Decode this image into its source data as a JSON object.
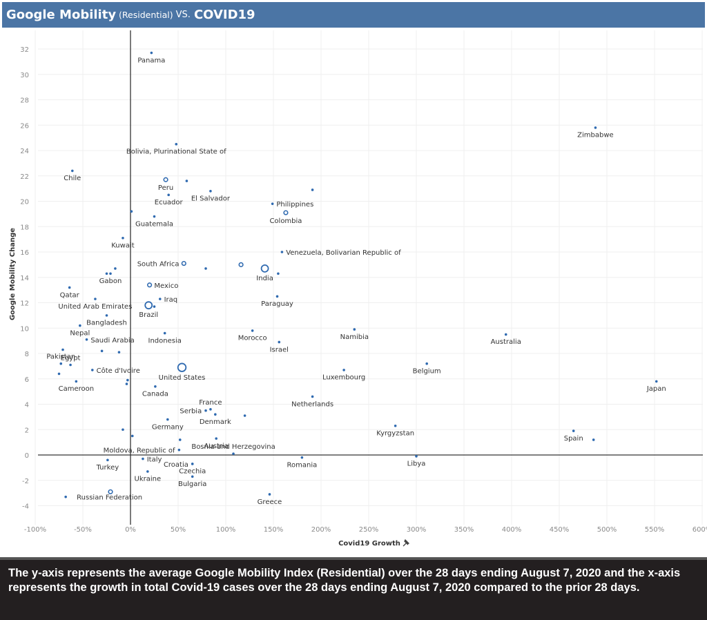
{
  "header": {
    "title_main": "Google Mobility",
    "title_sub": "(Residential)",
    "title_vs": "VS.",
    "title_covid": "COVID19",
    "background": "#4b75a5"
  },
  "footer": {
    "text": "The y-axis represents the average Google Mobility Index (Residential) over the 28 days ending August 7, 2020 and the x-axis represents the growth in total Covid-19 cases over the 28 days ending August 7, 2020 compared to the prior 28 days."
  },
  "chart_data": {
    "type": "scatter",
    "title": "Google Mobility (Residential) VS. COVID19",
    "xlabel": "Covid19 Growth",
    "xlabel_icon": "pin-icon",
    "ylabel": "Google Mobility Change",
    "xlim": [
      -110,
      605
    ],
    "ylim": [
      -5.2,
      33
    ],
    "x_unit": "%",
    "grid": true,
    "x_ticks": [
      -100,
      -50,
      0,
      50,
      100,
      150,
      200,
      250,
      300,
      350,
      400,
      450,
      500,
      550,
      600
    ],
    "x_tick_labels": [
      "-100%",
      "-50%",
      "0%",
      "50%",
      "100%",
      "150%",
      "200%",
      "250%",
      "300%",
      "350%",
      "400%",
      "450%",
      "500%",
      "550%",
      "600%"
    ],
    "y_ticks": [
      -4,
      -2,
      0,
      2,
      4,
      6,
      8,
      10,
      12,
      14,
      16,
      18,
      20,
      22,
      24,
      26,
      28,
      30,
      32
    ],
    "marker_color": "#2f6ab0",
    "points": [
      {
        "label": "Panama",
        "x": 22,
        "y": 31.7,
        "size": "s",
        "lx": 0,
        "ly": 1
      },
      {
        "label": "Zimbabwe",
        "x": 488,
        "y": 25.8,
        "size": "s",
        "lx": 0,
        "ly": 1
      },
      {
        "label": "Bolivia, Plurinational State of",
        "x": 48,
        "y": 24.5,
        "size": "s",
        "lx": 0,
        "ly": 1
      },
      {
        "label": "Chile",
        "x": -61,
        "y": 22.4,
        "size": "s",
        "lx": 0,
        "ly": 1
      },
      {
        "label": "Peru",
        "x": 37,
        "y": 21.7,
        "size": "m",
        "lx": 0,
        "ly": 1
      },
      {
        "label": "",
        "x": 59,
        "y": 21.6,
        "size": "s"
      },
      {
        "label": "",
        "x": 191,
        "y": 20.9,
        "size": "s"
      },
      {
        "label": "El Salvador",
        "x": 84,
        "y": 20.8,
        "size": "s",
        "lx": 0,
        "ly": 1
      },
      {
        "label": "Ecuador",
        "x": 40,
        "y": 20.5,
        "size": "s",
        "lx": 0,
        "ly": 1
      },
      {
        "label": "Philippines",
        "x": 149,
        "y": 19.8,
        "size": "s",
        "lx": 1,
        "ly": 0
      },
      {
        "label": "",
        "x": 1,
        "y": 19.2,
        "size": "s"
      },
      {
        "label": "Colombia",
        "x": 163,
        "y": 19.1,
        "size": "m",
        "lx": 0,
        "ly": 1
      },
      {
        "label": "Guatemala",
        "x": 25,
        "y": 18.8,
        "size": "s",
        "lx": 0,
        "ly": 1
      },
      {
        "label": "Kuwait",
        "x": -8,
        "y": 17.1,
        "size": "s",
        "lx": 0,
        "ly": 1
      },
      {
        "label": "Venezuela, Bolivarian Republic of",
        "x": 159,
        "y": 16.0,
        "size": "s",
        "lx": 1,
        "ly": 0
      },
      {
        "label": "South Africa",
        "x": 56,
        "y": 15.1,
        "size": "m",
        "lx": -1,
        "ly": 0
      },
      {
        "label": "",
        "x": 116,
        "y": 15.0,
        "size": "m"
      },
      {
        "label": "",
        "x": 79,
        "y": 14.7,
        "size": "s"
      },
      {
        "label": "",
        "x": -16,
        "y": 14.7,
        "size": "s"
      },
      {
        "label": "India",
        "x": 141,
        "y": 14.7,
        "size": "l",
        "lx": 0,
        "ly": 1
      },
      {
        "label": "",
        "x": 155,
        "y": 14.3,
        "size": "s"
      },
      {
        "label": "",
        "x": -25,
        "y": 14.3,
        "size": "s"
      },
      {
        "label": "Gabon",
        "x": -21,
        "y": 14.3,
        "size": "s",
        "lx": 0,
        "ly": 1
      },
      {
        "label": "Mexico",
        "x": 20,
        "y": 13.4,
        "size": "m",
        "lx": 1,
        "ly": 0
      },
      {
        "label": "Qatar",
        "x": -64,
        "y": 13.2,
        "size": "s",
        "lx": 0,
        "ly": 1
      },
      {
        "label": "Paraguay",
        "x": 154,
        "y": 12.5,
        "size": "s",
        "lx": 0,
        "ly": 1
      },
      {
        "label": "Iraq",
        "x": 31,
        "y": 12.3,
        "size": "s",
        "lx": 1,
        "ly": 0
      },
      {
        "label": "United Arab Emirates",
        "x": -37,
        "y": 12.3,
        "size": "s",
        "lx": 0,
        "ly": 1
      },
      {
        "label": "Brazil",
        "x": 19,
        "y": 11.8,
        "size": "l",
        "lx": 0,
        "ly": 1
      },
      {
        "label": "",
        "x": 25,
        "y": 11.7,
        "size": "s"
      },
      {
        "label": "Bangladesh",
        "x": -25,
        "y": 11.0,
        "size": "s",
        "lx": 0,
        "ly": 1
      },
      {
        "label": "Nepal",
        "x": -53,
        "y": 10.2,
        "size": "s",
        "lx": 0,
        "ly": 1
      },
      {
        "label": "Namibia",
        "x": 235,
        "y": 9.9,
        "size": "s",
        "lx": 0,
        "ly": 1
      },
      {
        "label": "Morocco",
        "x": 128,
        "y": 9.8,
        "size": "s",
        "lx": 0,
        "ly": 1
      },
      {
        "label": "Indonesia",
        "x": 36,
        "y": 9.6,
        "size": "s",
        "lx": 0,
        "ly": 1
      },
      {
        "label": "Australia",
        "x": 394,
        "y": 9.5,
        "size": "s",
        "lx": 0,
        "ly": 1
      },
      {
        "label": "Saudi Arabia",
        "x": -46,
        "y": 9.1,
        "size": "s",
        "lx": 1,
        "ly": 0
      },
      {
        "label": "Israel",
        "x": 156,
        "y": 8.9,
        "size": "s",
        "lx": 0,
        "ly": 1
      },
      {
        "label": "",
        "x": -71,
        "y": 8.3,
        "size": "s"
      },
      {
        "label": "",
        "x": -30,
        "y": 8.2,
        "size": "s"
      },
      {
        "label": "",
        "x": -12,
        "y": 8.1,
        "size": "s"
      },
      {
        "label": "Belgium",
        "x": 311,
        "y": 7.2,
        "size": "s",
        "lx": 0,
        "ly": 1
      },
      {
        "label": "Pakistan",
        "x": -73,
        "y": 7.2,
        "size": "s",
        "lx": 0,
        "ly": -1
      },
      {
        "label": "Egypt",
        "x": -63,
        "y": 7.1,
        "size": "s",
        "lx": 0,
        "ly": -1
      },
      {
        "label": "United States",
        "x": 54,
        "y": 6.9,
        "size": "xl",
        "lx": 0,
        "ly": 1
      },
      {
        "label": "Luxembourg",
        "x": 224,
        "y": 6.7,
        "size": "s",
        "lx": 0,
        "ly": 1
      },
      {
        "label": "Côte d'Ivoire",
        "x": -40,
        "y": 6.7,
        "size": "s",
        "lx": 1,
        "ly": 0
      },
      {
        "label": "",
        "x": -75,
        "y": 6.4,
        "size": "s"
      },
      {
        "label": "",
        "x": -3,
        "y": 5.9,
        "size": "s"
      },
      {
        "label": "Japan",
        "x": 552,
        "y": 5.8,
        "size": "s",
        "lx": 0,
        "ly": 1
      },
      {
        "label": "Cameroon",
        "x": -57,
        "y": 5.8,
        "size": "s",
        "lx": 0,
        "ly": 1
      },
      {
        "label": "",
        "x": -4,
        "y": 5.6,
        "size": "s"
      },
      {
        "label": "Canada",
        "x": 26,
        "y": 5.4,
        "size": "s",
        "lx": 0,
        "ly": 1
      },
      {
        "label": "Netherlands",
        "x": 191,
        "y": 4.6,
        "size": "s",
        "lx": 0,
        "ly": 1
      },
      {
        "label": "France",
        "x": 84,
        "y": 3.6,
        "size": "s",
        "lx": 0,
        "ly": -1
      },
      {
        "label": "Serbia",
        "x": 79,
        "y": 3.5,
        "size": "s",
        "lx": -1,
        "ly": 0
      },
      {
        "label": "Denmark",
        "x": 89,
        "y": 3.2,
        "size": "s",
        "lx": 0,
        "ly": 1
      },
      {
        "label": "",
        "x": 120,
        "y": 3.1,
        "size": "s"
      },
      {
        "label": "Germany",
        "x": 39,
        "y": 2.8,
        "size": "s",
        "lx": 0,
        "ly": 1
      },
      {
        "label": "Kyrgyzstan",
        "x": 278,
        "y": 2.3,
        "size": "s",
        "lx": 0,
        "ly": 1
      },
      {
        "label": "",
        "x": -8,
        "y": 2.0,
        "size": "s"
      },
      {
        "label": "Spain",
        "x": 465,
        "y": 1.9,
        "size": "s",
        "lx": 0,
        "ly": 1
      },
      {
        "label": "",
        "x": 2,
        "y": 1.5,
        "size": "s"
      },
      {
        "label": "Austria",
        "x": 90,
        "y": 1.3,
        "size": "s",
        "lx": 0,
        "ly": 1
      },
      {
        "label": "",
        "x": 486,
        "y": 1.2,
        "size": "s"
      },
      {
        "label": "",
        "x": 52,
        "y": 1.2,
        "size": "s"
      },
      {
        "label": "Moldova, Republic of",
        "x": 51,
        "y": 0.4,
        "size": "s",
        "lx": -1,
        "ly": 0
      },
      {
        "label": "Bosnia and Herzegovina",
        "x": 108,
        "y": 0.1,
        "size": "s",
        "lx": 0,
        "ly": -1
      },
      {
        "label": "Libya",
        "x": 300,
        "y": -0.1,
        "size": "s",
        "lx": 0,
        "ly": 1
      },
      {
        "label": "Romania",
        "x": 180,
        "y": -0.2,
        "size": "s",
        "lx": 0,
        "ly": 1
      },
      {
        "label": "Italy",
        "x": 13,
        "y": -0.3,
        "size": "s",
        "lx": 1,
        "ly": 0
      },
      {
        "label": "Turkey",
        "x": -24,
        "y": -0.4,
        "size": "s",
        "lx": 0,
        "ly": 1
      },
      {
        "label": "Croatia",
        "x": 65,
        "y": -0.7,
        "size": "s",
        "lx": -1,
        "ly": 0
      },
      {
        "label": "Czechia",
        "x": 65,
        "y": -0.7,
        "size": "s",
        "lx": 0,
        "ly": 1
      },
      {
        "label": "Ukraine",
        "x": 18,
        "y": -1.3,
        "size": "s",
        "lx": 0,
        "ly": 1
      },
      {
        "label": "Bulgaria",
        "x": 65,
        "y": -1.7,
        "size": "s",
        "lx": 0,
        "ly": 1
      },
      {
        "label": "",
        "x": -21,
        "y": -2.9,
        "size": "m"
      },
      {
        "label": "Greece",
        "x": 146,
        "y": -3.1,
        "size": "s",
        "lx": 0,
        "ly": 1
      },
      {
        "label": "Russian Federation",
        "x": -68,
        "y": -3.3,
        "size": "s",
        "lx": 1,
        "ly": 1
      }
    ]
  }
}
